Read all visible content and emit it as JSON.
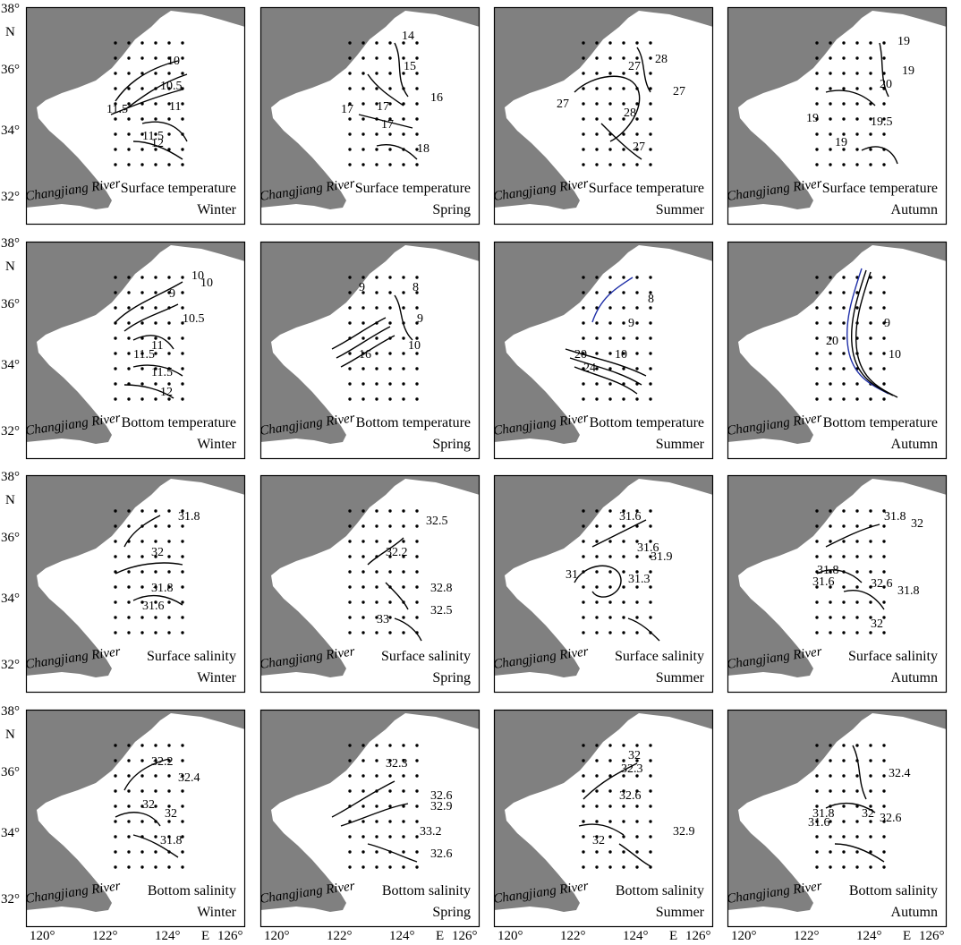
{
  "figure": {
    "columns": [
      "Winter",
      "Spring",
      "Summer",
      "Autumn"
    ],
    "rows": [
      "Surface temperature",
      "Bottom temperature",
      "Surface salinity",
      "Bottom salinity"
    ],
    "river_label": "Changjiang River",
    "axes": {
      "lon_ticks": [
        "120°",
        "122°",
        "124°",
        "126°"
      ],
      "lon_dir": "E",
      "lat_ticks": [
        "38°",
        "36°",
        "34°",
        "32°"
      ],
      "lat_dir": "N",
      "lon_range": [
        119,
        126
      ],
      "lat_range": [
        31,
        38
      ]
    },
    "colors": {
      "land": "#808080",
      "sea": "#ffffff",
      "contour": "#000000",
      "highlight": "#1f2fa8"
    }
  },
  "panels": [
    {
      "title": "Surface temperature",
      "season": "Winter",
      "labels": [
        "10",
        "10.5",
        "11",
        "11.5",
        "11.5",
        "12"
      ]
    },
    {
      "title": "Surface temperature",
      "season": "Spring",
      "labels": [
        "14",
        "15",
        "16",
        "17",
        "17",
        "17",
        "18"
      ]
    },
    {
      "title": "Surface temperature",
      "season": "Summer",
      "labels": [
        "27",
        "28",
        "27",
        "27",
        "28",
        "27"
      ]
    },
    {
      "title": "Surface temperature",
      "season": "Autumn",
      "labels": [
        "19",
        "19",
        "20",
        "19",
        "19.5",
        "19"
      ]
    },
    {
      "title": "Bottom temperature",
      "season": "Winter",
      "labels": [
        "9",
        "10",
        "10",
        "10.5",
        "11",
        "11.5",
        "11.5",
        "12"
      ]
    },
    {
      "title": "Bottom temperature",
      "season": "Spring",
      "labels": [
        "9",
        "8",
        "10",
        "9",
        "16"
      ]
    },
    {
      "title": "Bottom temperature",
      "season": "Summer",
      "labels": [
        "8",
        "9",
        "10",
        "20",
        "24"
      ]
    },
    {
      "title": "Bottom temperature",
      "season": "Autumn",
      "labels": [
        "20",
        "9",
        "10"
      ]
    },
    {
      "title": "Surface salinity",
      "season": "Winter",
      "labels": [
        "31.8",
        "32",
        "31.8",
        "31.6"
      ]
    },
    {
      "title": "Surface salinity",
      "season": "Spring",
      "labels": [
        "32.5",
        "32.2",
        "32.8",
        "32.5",
        "33"
      ]
    },
    {
      "title": "Surface salinity",
      "season": "Summer",
      "labels": [
        "31.6",
        "31.6",
        "31.9",
        "31",
        "31.3"
      ]
    },
    {
      "title": "Surface salinity",
      "season": "Autumn",
      "labels": [
        "31.8",
        "32",
        "31.8",
        "31.6",
        "32.6",
        "31.8",
        "32"
      ]
    },
    {
      "title": "Bottom salinity",
      "season": "Winter",
      "labels": [
        "32.2",
        "32.4",
        "32",
        "32",
        "31.8"
      ]
    },
    {
      "title": "Bottom salinity",
      "season": "Spring",
      "labels": [
        "32.3",
        "32.6",
        "32.9",
        "33.2",
        "32.6"
      ]
    },
    {
      "title": "Bottom salinity",
      "season": "Summer",
      "labels": [
        "32",
        "32.3",
        "32.6",
        "32.9",
        "32"
      ]
    },
    {
      "title": "Bottom salinity",
      "season": "Autumn",
      "labels": [
        "32.4",
        "31.8",
        "31.6",
        "32",
        "32.6"
      ]
    }
  ]
}
